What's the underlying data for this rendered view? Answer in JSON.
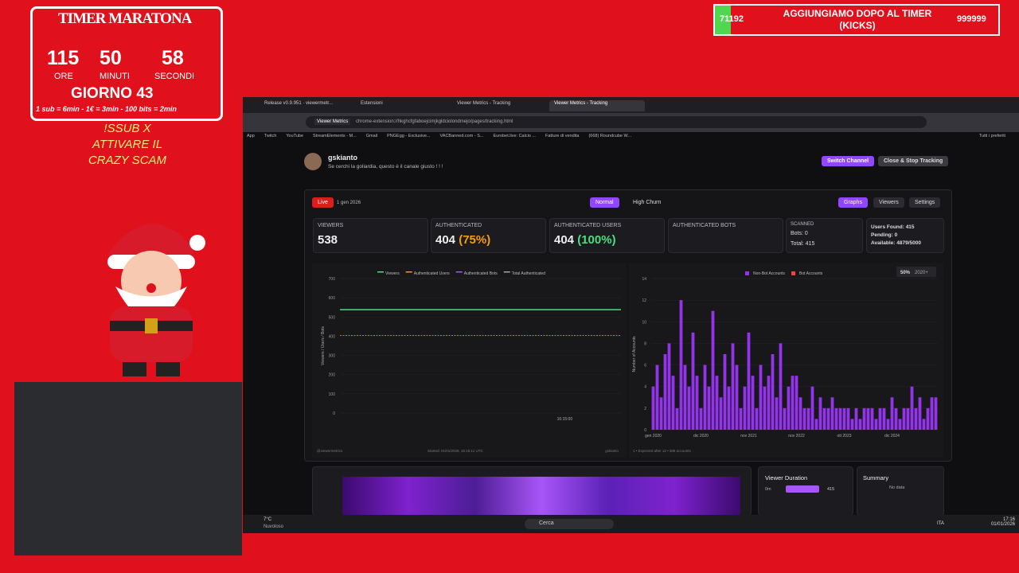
{
  "overlay": {
    "timer_title": "TIMER MARATONA",
    "hours": "115",
    "minutes": "50",
    "seconds": "58",
    "hours_label": "ORE",
    "minutes_label": "MINUTI",
    "seconds_label": "SECONDI",
    "day": "GIORNO 43",
    "rates": "1 sub = 6min - 1€ = 3min - 100 bits = 2min",
    "promo": [
      "!SSUB X",
      "ATTIVARE IL",
      "CRAZY SCAM"
    ],
    "goal_left": "71192",
    "goal_text": "AGGIUNGIAMO DOPO AL TIMER (KICKS)",
    "goal_right": "999999"
  },
  "browser": {
    "tabs": [
      "Release v0.9.951 · viewermetr...",
      "Estensioni",
      "Viewer Metrics - Tracking",
      "Viewer Metrics - Tracking"
    ],
    "url_chip": "Viewer Metrics",
    "url": "chrome-extension://hkghcfgfaboejcimjkgldciolondmejo/pages/tracking.html",
    "bookmarks": [
      "App",
      "Twitch",
      "YouTube",
      "StreamElements - M...",
      "Gmail",
      "PNGEgg - Exclusive...",
      "VACBanned.com - S...",
      "Eurobet.live: Calcio ...",
      "Fatture di vendita",
      "(668) Roundcube W..."
    ],
    "all_bookmarks": "Tutti i preferiti"
  },
  "page": {
    "channel": "gskianto",
    "tagline": "Se cerchi la goliardia, questo è il canale giusto ! ! !",
    "switch": "Switch Channel",
    "close": "Close & Stop Tracking",
    "live": "Live",
    "date": "1 gen 2026",
    "modes": [
      "Normal",
      "High Churn"
    ],
    "views": [
      "Graphs",
      "Viewers",
      "Settings"
    ],
    "stats": {
      "viewers_label": "VIEWERS",
      "viewers": "538",
      "auth_label": "AUTHENTICATED",
      "auth": "404",
      "auth_pct": "(75%)",
      "users_label": "AUTHENTICATED USERS",
      "users": "404",
      "users_pct": "(100%)",
      "bots_label": "AUTHENTICATED BOTS",
      "scanned_label": "SCANNED",
      "scanned_bots": "Bots: 0",
      "scanned_total": "Total: 415",
      "found": "Users Found: 415",
      "pending": "Pending: 0",
      "available": "Available: 4879/5000"
    },
    "duration_title": "Viewer Duration",
    "duration_min": "0m",
    "duration_count": "415",
    "summary_title": "Summary",
    "summary_text": "No data"
  },
  "chart_data": [
    {
      "type": "line",
      "ylabel": "Viewers / Users / Bots",
      "categories": [
        null,
        null,
        null,
        null,
        "16:15:00",
        null
      ],
      "ylim": [
        0,
        700
      ],
      "yticks": [
        0,
        100,
        200,
        300,
        400,
        500,
        600,
        700
      ],
      "grid": true,
      "series": [
        {
          "name": "Viewers",
          "color": "#4ade80",
          "values": [
            538,
            538,
            538,
            538,
            538,
            538
          ]
        },
        {
          "name": "Authenticated Users",
          "color": "#f59e0b",
          "values": [
            404,
            404,
            404,
            404,
            404,
            404
          ]
        },
        {
          "name": "Authenticated Bots",
          "color": "#a855f7",
          "values": [
            null,
            null,
            null,
            null,
            null,
            null
          ]
        },
        {
          "name": "Total Authenticated",
          "color": "#9ca3af",
          "values": [
            null,
            null,
            null,
            null,
            null,
            null
          ]
        }
      ],
      "footer": [
        "@viewermetrics",
        "Started: 01/01/2026, 16:15:11 UTC",
        "gskianto"
      ]
    },
    {
      "type": "bar",
      "ylabel": "Number of Accounts",
      "badge": "50%",
      "badge2": "2020+",
      "ylim": [
        0,
        14
      ],
      "yticks": [
        0,
        2,
        4,
        6,
        8,
        10,
        12,
        14
      ],
      "grid": true,
      "categories": [
        "gen 2020",
        null,
        null,
        null,
        null,
        null,
        null,
        null,
        null,
        null,
        null,
        null,
        "dic 2020",
        null,
        null,
        null,
        null,
        null,
        null,
        null,
        null,
        null,
        null,
        null,
        "nov 2021",
        null,
        null,
        null,
        null,
        null,
        null,
        null,
        null,
        null,
        null,
        null,
        "nov 2022",
        null,
        null,
        null,
        null,
        null,
        null,
        null,
        null,
        null,
        null,
        null,
        "ott 2023",
        null,
        null,
        null,
        null,
        null,
        null,
        null,
        null,
        null,
        null,
        null,
        "dic 2024",
        null,
        null,
        null,
        null,
        null,
        null,
        null,
        null,
        null,
        null,
        null
      ],
      "series": [
        {
          "name": "Non-Bot Accounts",
          "color": "#9333ea",
          "values": [
            4,
            6,
            3,
            7,
            8,
            5,
            2,
            12,
            6,
            4,
            9,
            5,
            2,
            6,
            4,
            11,
            5,
            3,
            7,
            4,
            8,
            6,
            2,
            4,
            9,
            5,
            2,
            6,
            4,
            5,
            7,
            3,
            8,
            2,
            4,
            5,
            5,
            3,
            2,
            2,
            4,
            1,
            3,
            2,
            2,
            3,
            2,
            2,
            2,
            2,
            1,
            2,
            1,
            2,
            2,
            2,
            1,
            2,
            2,
            1,
            3,
            2,
            1,
            2,
            2,
            4,
            2,
            3,
            1,
            2,
            3,
            3
          ]
        },
        {
          "name": "Bot Accounts",
          "color": "#ef4444",
          "values": [
            0,
            0,
            0,
            0,
            0,
            0,
            0,
            0,
            0,
            0,
            0,
            0,
            0,
            0,
            0,
            0,
            0,
            0,
            0,
            0,
            0,
            0,
            0,
            0,
            0,
            0,
            0,
            0,
            0,
            0,
            0,
            0,
            0,
            0,
            0,
            0,
            0,
            0,
            0,
            0,
            0,
            0,
            0,
            0,
            0,
            0,
            0,
            0,
            0,
            0,
            0,
            0,
            0,
            0,
            0,
            0,
            0,
            0,
            0,
            0,
            0,
            0,
            0,
            0,
            0,
            0,
            0,
            0,
            0,
            0,
            0,
            0
          ]
        }
      ],
      "footer": [
        "1 • Expected after 12 • 389 accounts"
      ]
    }
  ],
  "taskbar": {
    "temp": "7°C",
    "weather": "Nuvoloso",
    "search": "Cerca",
    "lang": "ITA",
    "time": "17:16",
    "date": "01/01/2026"
  }
}
